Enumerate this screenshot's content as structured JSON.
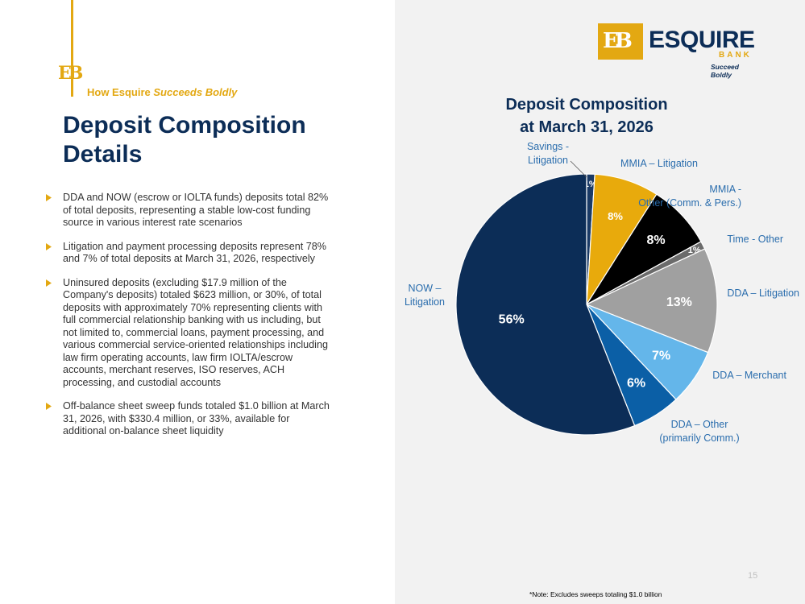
{
  "page": {
    "tagline_plain": "How Esquire",
    "tagline_italic": "Succeeds Boldly",
    "title": "Deposit Composition Details",
    "bullets": [
      "DDA and NOW (escrow or IOLTA funds) deposits total 82% of total deposits, representing a stable low-cost funding source in various interest rate scenarios",
      "Litigation and payment processing deposits represent 78% and 7% of total deposits at March 31, 2026, respectively",
      "Uninsured deposits (excluding $17.9 million of the Company's deposits) totaled $623 million, or 30%, of total deposits with approximately 70% representing clients with full commercial relationship banking with us including, but not limited to, commercial loans, payment processing, and various commercial service-oriented relationships including law firm operating accounts, law firm IOLTA/escrow accounts, merchant reserves, ISO reserves, ACH processing, and custodial accounts",
      "Off-balance sheet sweep funds totaled $1.0 billion at March 31, 2026, with $330.4 million, or 33%, available for additional on-balance sheet liquidity"
    ],
    "page_number": "15",
    "footnote": "*Note: Excludes sweeps totaling $1.0 billion"
  },
  "logo": {
    "monogram": "EB",
    "name": "ESQUIRE",
    "sub": "BANK",
    "tagline": "Succeed Boldly"
  },
  "colors": {
    "navy": "#0c2d57",
    "gold": "#e3a812"
  },
  "chart_data": {
    "type": "pie",
    "title": [
      "Deposit Composition",
      "at March 31, 2026"
    ],
    "slices": [
      {
        "label": [
          "Savings -",
          "Litigation"
        ],
        "value": 1,
        "display": "1%",
        "color": "#1a3a66",
        "text_color": "#ffffff"
      },
      {
        "label": [
          "MMIA – Litigation"
        ],
        "value": 8,
        "display": "8%",
        "color": "#e8aa0c",
        "text_color": "#ffffff"
      },
      {
        "label": [
          "MMIA -",
          "Other (Comm. & Pers.)"
        ],
        "value": 8,
        "display": "8%",
        "color": "#000000",
        "text_color": "#ffffff"
      },
      {
        "label": [
          "Time - Other"
        ],
        "value": 1,
        "display": "1%",
        "color": "#6b6b6b",
        "text_color": "#ffffff"
      },
      {
        "label": [
          "DDA – Litigation"
        ],
        "value": 13,
        "display": "13%",
        "color": "#a0a0a0",
        "text_color": "#ffffff"
      },
      {
        "label": [
          "DDA – Merchant"
        ],
        "value": 7,
        "display": "7%",
        "color": "#64b6ea",
        "text_color": "#ffffff"
      },
      {
        "label": [
          "DDA – Other",
          "(primarily Comm.)"
        ],
        "value": 6,
        "display": "6%",
        "color": "#0b5fa6",
        "text_color": "#ffffff"
      },
      {
        "label": [
          "NOW –",
          "Litigation"
        ],
        "value": 56,
        "display": "56%",
        "color": "#0c2d57",
        "text_color": "#ffffff"
      }
    ]
  }
}
